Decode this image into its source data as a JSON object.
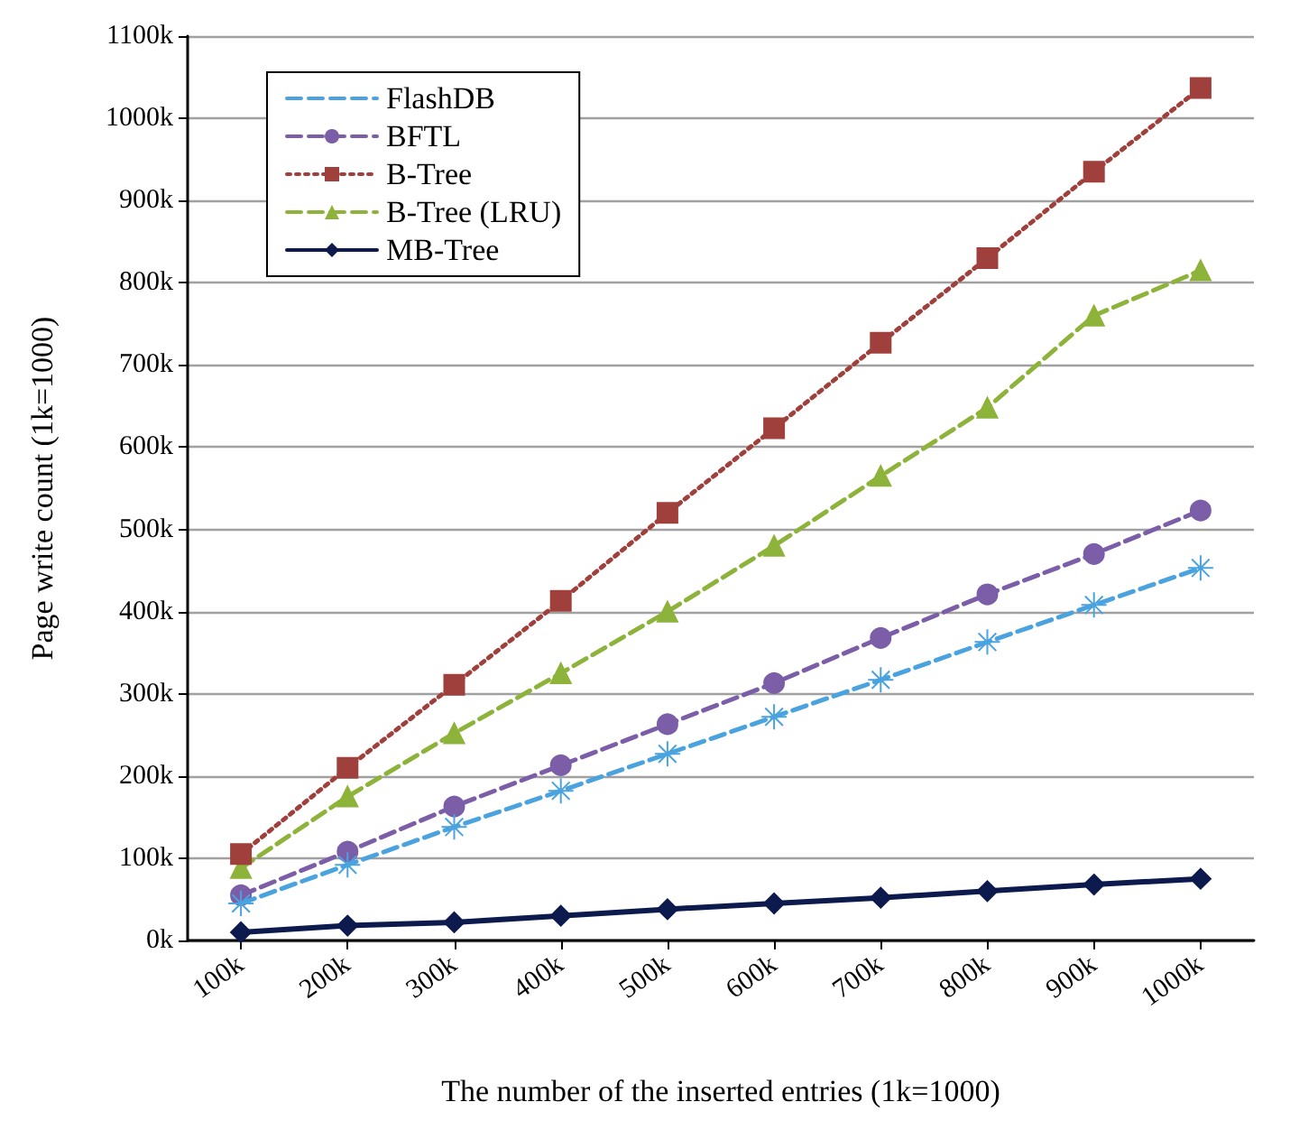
{
  "chart_data": {
    "type": "line",
    "xlabel": "The number of the inserted entries (1k=1000)",
    "ylabel": "Page write count (1k=1000)",
    "categories": [
      "100k",
      "200k",
      "300k",
      "400k",
      "500k",
      "600k",
      "700k",
      "800k",
      "900k",
      "1000k"
    ],
    "series": [
      {
        "name": "FlashDB",
        "color": "#4aa3df",
        "marker": "cross",
        "line_style": "dashed",
        "values": [
          45000,
          92000,
          138000,
          182000,
          227000,
          272000,
          317000,
          363000,
          408000,
          453000
        ]
      },
      {
        "name": "BFTL",
        "color": "#7b5ea7",
        "marker": "circle",
        "line_style": "dashed",
        "values": [
          55000,
          108000,
          163000,
          213000,
          263000,
          313000,
          368000,
          421000,
          470000,
          523000
        ]
      },
      {
        "name": "B-Tree",
        "color": "#a0403c",
        "marker": "square",
        "line_style": "dotted",
        "values": [
          105000,
          210000,
          311000,
          413000,
          520000,
          623000,
          727000,
          830000,
          935000,
          1037000
        ]
      },
      {
        "name": "B-Tree (LRU)",
        "color": "#8db33a",
        "marker": "triangle",
        "line_style": "dashed",
        "values": [
          88000,
          175000,
          252000,
          325000,
          400000,
          480000,
          565000,
          648000,
          760000,
          815000
        ]
      },
      {
        "name": "MB-Tree",
        "color": "#0d1a4d",
        "marker": "diamond",
        "line_style": "solid",
        "values": [
          10000,
          18000,
          22000,
          30000,
          38000,
          45000,
          52000,
          60000,
          68000,
          75000
        ]
      }
    ],
    "ylim": [
      0,
      1100000
    ],
    "yticks": [
      {
        "value": 0,
        "label": "0k"
      },
      {
        "value": 100000,
        "label": "100k"
      },
      {
        "value": 200000,
        "label": "200k"
      },
      {
        "value": 300000,
        "label": "300k"
      },
      {
        "value": 400000,
        "label": "400k"
      },
      {
        "value": 500000,
        "label": "500k"
      },
      {
        "value": 600000,
        "label": "600k"
      },
      {
        "value": 700000,
        "label": "700k"
      },
      {
        "value": 800000,
        "label": "800k"
      },
      {
        "value": 900000,
        "label": "900k"
      },
      {
        "value": 1000000,
        "label": "1000k"
      },
      {
        "value": 1100000,
        "label": "1100k"
      }
    ],
    "grid": "y",
    "legend": "top left"
  }
}
